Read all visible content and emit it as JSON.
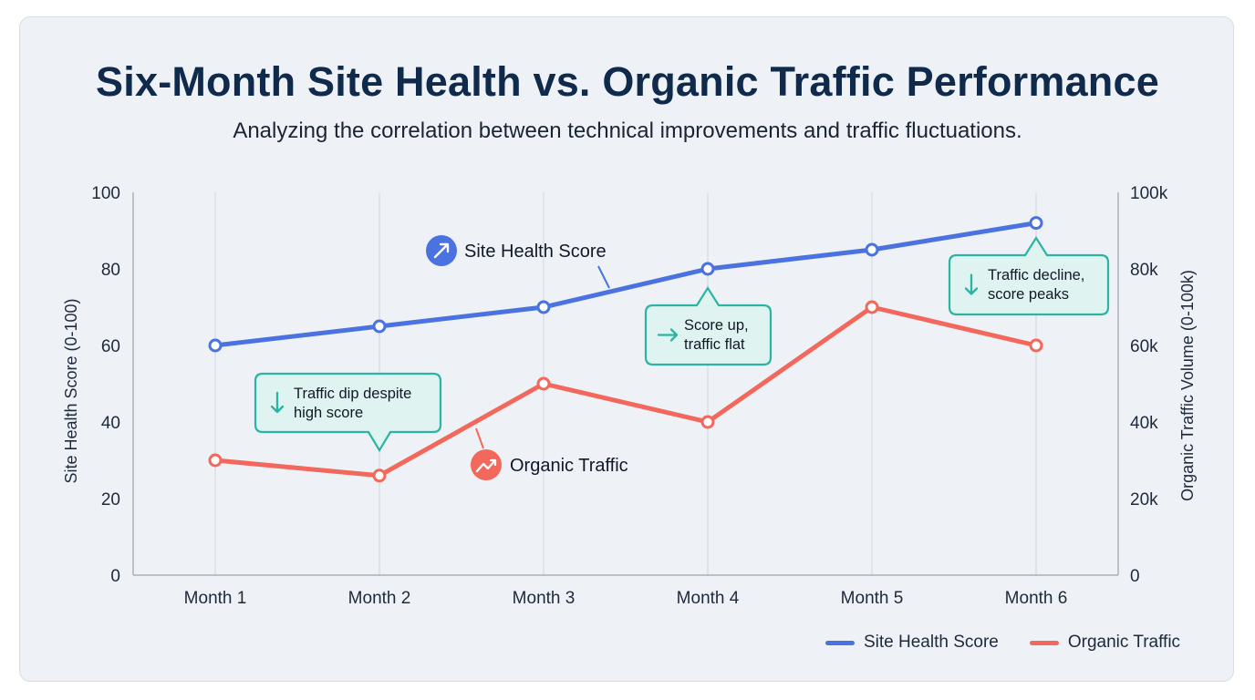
{
  "title": "Six-Month Site Health vs. Organic Traffic Performance",
  "subtitle": "Analyzing the correlation between technical improvements and traffic fluctuations.",
  "colors": {
    "health": "#4a72e0",
    "traffic": "#f2685c",
    "callout_border": "#2bb3a3",
    "callout_fill": "#dff3f0",
    "grid": "#d5dae2",
    "axis": "#9aa3af"
  },
  "chart_data": {
    "type": "line",
    "categories": [
      "Month 1",
      "Month 2",
      "Month 3",
      "Month 4",
      "Month 5",
      "Month 6"
    ],
    "series": [
      {
        "name": "Site Health Score",
        "axis": "left",
        "values": [
          60,
          65,
          70,
          80,
          85,
          92
        ]
      },
      {
        "name": "Organic Traffic",
        "axis": "right",
        "values": [
          30000,
          26000,
          50000,
          40000,
          70000,
          60000
        ]
      }
    ],
    "ylabel_left": "Site Health Score (0-100)",
    "ylabel_right": "Organic Traffic Volume (0-100k)",
    "ylim_left": [
      0,
      100
    ],
    "ylim_right": [
      0,
      100000
    ],
    "left_ticks": [
      "0",
      "20",
      "40",
      "60",
      "80",
      "100"
    ],
    "right_ticks": [
      "0",
      "20k",
      "40k",
      "60k",
      "80k",
      "100k"
    ],
    "grid": "vertical",
    "legend": "bottom-right",
    "series_labels": [
      "Site Health Score",
      "Organic Traffic"
    ],
    "annotations": [
      {
        "text": [
          "Traffic dip despite",
          "high score"
        ],
        "icon": "arrow-down-icon",
        "category": "Month 2"
      },
      {
        "text": [
          "Score up,",
          "traffic flat"
        ],
        "icon": "arrow-right-icon",
        "category": "Month 4"
      },
      {
        "text": [
          "Traffic decline,",
          "score peaks"
        ],
        "icon": "arrow-down-icon",
        "category": "Month 6"
      }
    ]
  },
  "legend": {
    "health_label": "Site Health Score",
    "traffic_label": "Organic Traffic"
  }
}
